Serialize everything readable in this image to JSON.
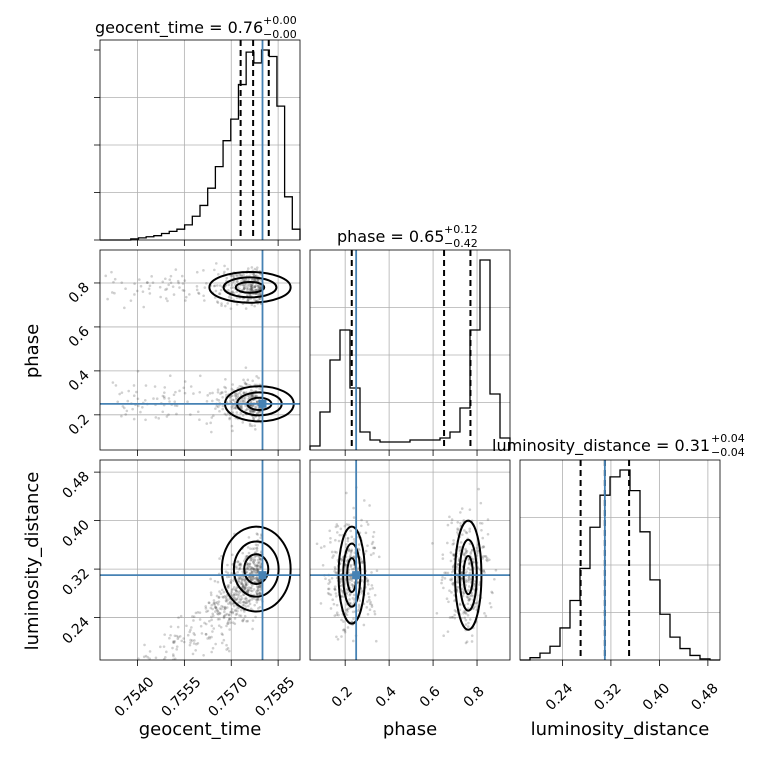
{
  "chart_data": {
    "type": "corner",
    "parameters": [
      "geocent_time",
      "phase",
      "luminosity_distance"
    ],
    "truths": {
      "geocent_time": 0.758,
      "phase": 0.25,
      "luminosity_distance": 0.31
    },
    "titles": [
      {
        "param": "geocent_time",
        "main": "geocent_time = 0.76",
        "sup": "+0.00",
        "sub": "−0.00"
      },
      {
        "param": "phase",
        "main": "phase = 0.65",
        "sup": "+0.12",
        "sub": "−0.42"
      },
      {
        "param": "luminosity_distance",
        "main": "luminosity_distance = 0.31",
        "sup": "+0.04",
        "sub": "−0.04"
      }
    ],
    "ranges": {
      "geocent_time": [
        0.7528,
        0.7592
      ],
      "phase": [
        0.04,
        0.95
      ],
      "luminosity_distance": [
        0.17,
        0.5
      ]
    },
    "ticks": {
      "geocent_time": [
        "0.7540",
        "0.7555",
        "0.7570",
        "0.7585"
      ],
      "phase": [
        "0.2",
        "0.4",
        "0.6",
        "0.8"
      ],
      "luminosity_distance": [
        "0.24",
        "0.32",
        "0.40",
        "0.48"
      ]
    },
    "ticks_numeric": {
      "geocent_time": [
        0.754,
        0.7555,
        0.757,
        0.7585
      ],
      "phase": [
        0.2,
        0.4,
        0.6,
        0.8
      ],
      "luminosity_distance": [
        0.24,
        0.32,
        0.4,
        0.48
      ]
    },
    "quantiles": {
      "geocent_time": [
        0.7573,
        0.7577,
        0.7582
      ],
      "phase": [
        0.23,
        0.65,
        0.77
      ],
      "luminosity_distance": [
        0.27,
        0.31,
        0.35
      ]
    },
    "histograms": {
      "geocent_time": {
        "range": [
          0.7528,
          0.7592
        ],
        "counts": [
          0.0,
          0.0,
          0.0,
          0.0,
          0.005,
          0.01,
          0.015,
          0.02,
          0.03,
          0.04,
          0.05,
          0.07,
          0.11,
          0.16,
          0.24,
          0.34,
          0.46,
          0.56,
          0.72,
          0.87,
          0.82,
          0.88,
          0.85,
          0.62,
          0.2,
          0.05
        ]
      },
      "phase": {
        "range": [
          0.04,
          0.95
        ],
        "counts": [
          0.02,
          0.19,
          0.45,
          0.6,
          0.31,
          0.09,
          0.05,
          0.04,
          0.04,
          0.04,
          0.05,
          0.05,
          0.05,
          0.06,
          0.09,
          0.21,
          0.6,
          0.95,
          0.28,
          0.06
        ]
      },
      "luminosity_distance": {
        "range": [
          0.17,
          0.5
        ],
        "counts": [
          0.0,
          0.01,
          0.03,
          0.06,
          0.14,
          0.26,
          0.4,
          0.58,
          0.72,
          0.8,
          0.83,
          0.74,
          0.56,
          0.35,
          0.2,
          0.1,
          0.05,
          0.02,
          0.005,
          0.0
        ]
      }
    },
    "labels": {
      "x": [
        "geocent_time",
        "phase",
        "luminosity_distance"
      ],
      "y": [
        "phase",
        "luminosity_distance"
      ]
    }
  }
}
